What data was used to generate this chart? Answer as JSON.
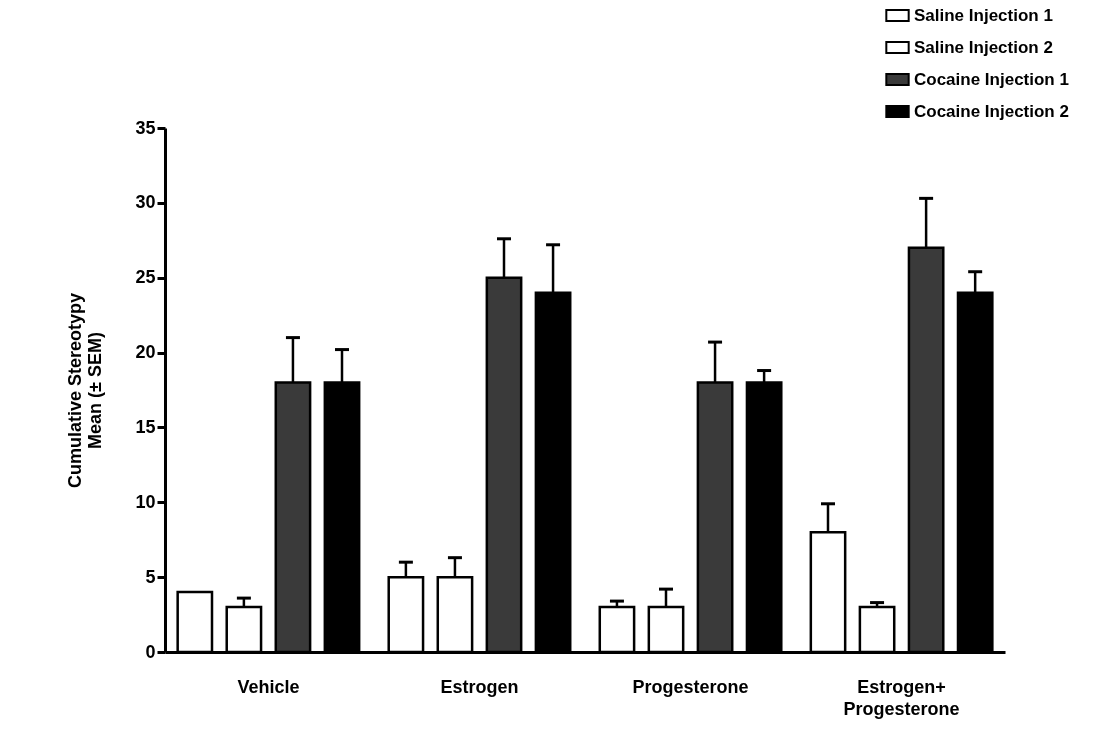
{
  "chart_data": {
    "type": "bar",
    "ylabel": "Cumulative Stereotypy\nMean (± SEM)",
    "categories": [
      "Vehicle",
      "Estrogen",
      "Progesterone",
      "Estrogen+ Progesterone"
    ],
    "series": [
      {
        "name": "Saline Injection 1",
        "color": "#ffffff",
        "values": [
          4,
          5,
          3,
          8
        ],
        "errors": [
          null,
          [
            5,
            6
          ],
          [
            3,
            3.4
          ],
          [
            8,
            9.9
          ]
        ]
      },
      {
        "name": "Saline Injection 2",
        "color": "#ffffff",
        "values": [
          3,
          5,
          3,
          3
        ],
        "errors": [
          [
            3,
            3.6
          ],
          [
            5,
            6.3
          ],
          [
            3,
            4.2
          ],
          [
            3,
            3.3
          ]
        ]
      },
      {
        "name": "Cocaine Injection 1",
        "color": "#3a3a3a",
        "values": [
          18,
          25,
          18,
          27
        ],
        "errors": [
          [
            18,
            21
          ],
          [
            25,
            27.6
          ],
          [
            18,
            20.7
          ],
          [
            27,
            30.3
          ]
        ]
      },
      {
        "name": "Cocaine Injection 2",
        "color": "#000000",
        "values": [
          18,
          24,
          18,
          24
        ],
        "errors": [
          [
            18,
            20.2
          ],
          [
            24,
            27.2
          ],
          [
            18,
            18.8
          ],
          [
            24,
            25.4
          ]
        ]
      }
    ],
    "ylim": [
      0,
      35
    ],
    "yticks": [
      0,
      5,
      10,
      15,
      20,
      25,
      30,
      35
    ],
    "grid": false,
    "legend": "top right"
  }
}
